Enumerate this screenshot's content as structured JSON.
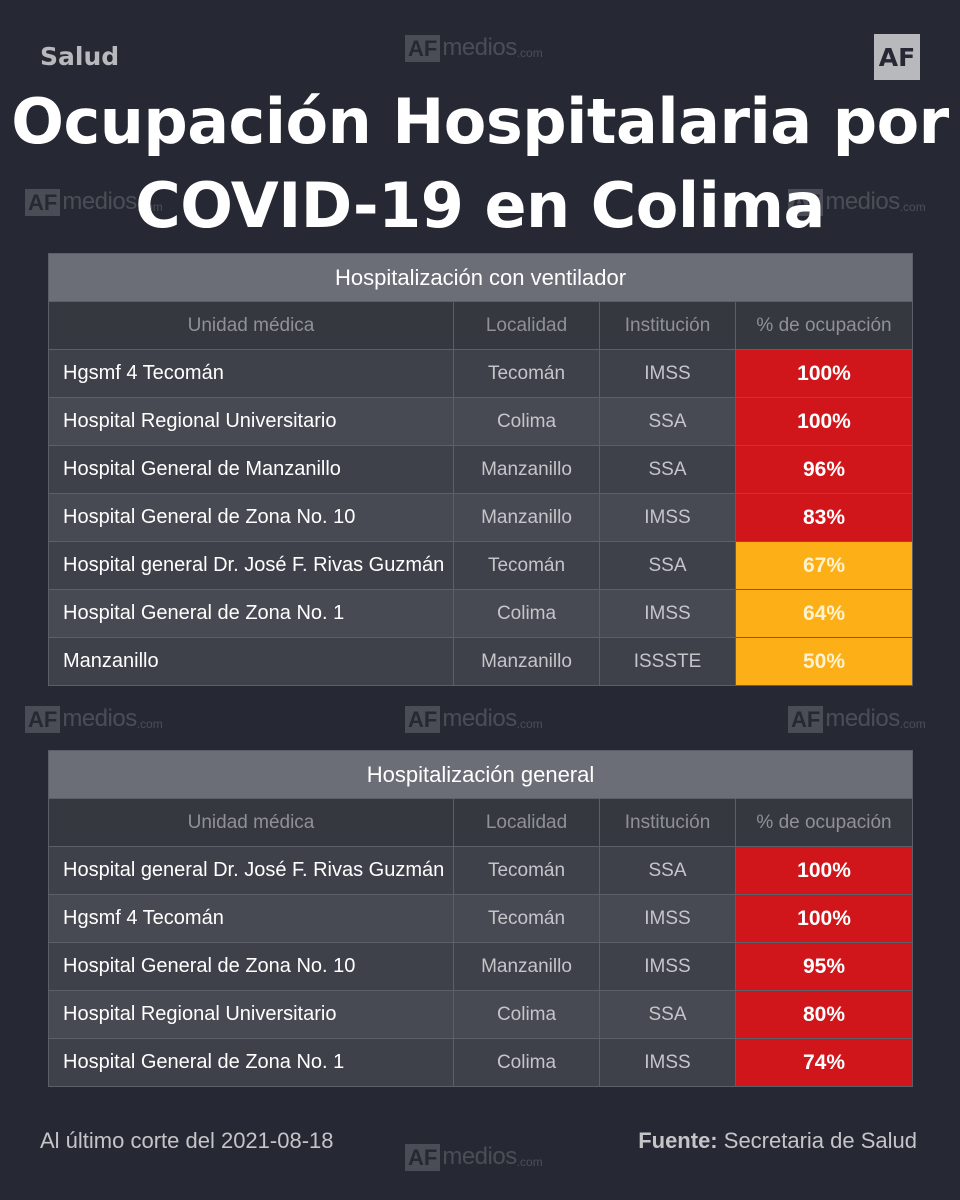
{
  "header": {
    "section": "Salud",
    "logo": "AF",
    "title_line1": "Ocupación Hospitalaria por",
    "title_line2": "COVID-19 en Colima"
  },
  "watermark": {
    "af": "AF",
    "text": "medios",
    "suffix": ".com"
  },
  "columns": {
    "unit": "Unidad médica",
    "locality": "Localidad",
    "institution": "Institución",
    "occupancy": "% de ocupación"
  },
  "table_ventilator": {
    "title": "Hospitalización con ventilador",
    "rows": [
      {
        "unit": "Hgsmf 4 Tecomán",
        "locality": "Tecomán",
        "institution": "IMSS",
        "occupancy": "100%",
        "level": "red"
      },
      {
        "unit": "Hospital Regional Universitario",
        "locality": "Colima",
        "institution": "SSA",
        "occupancy": "100%",
        "level": "red"
      },
      {
        "unit": "Hospital General de Manzanillo",
        "locality": "Manzanillo",
        "institution": "SSA",
        "occupancy": "96%",
        "level": "red"
      },
      {
        "unit": "Hospital General de Zona No. 10",
        "locality": "Manzanillo",
        "institution": "IMSS",
        "occupancy": "83%",
        "level": "red"
      },
      {
        "unit": "Hospital general Dr. José F. Rivas Guzmán",
        "locality": "Tecomán",
        "institution": "SSA",
        "occupancy": "67%",
        "level": "orange"
      },
      {
        "unit": "Hospital General de Zona No. 1",
        "locality": "Colima",
        "institution": "IMSS",
        "occupancy": "64%",
        "level": "orange"
      },
      {
        "unit": "Manzanillo",
        "locality": "Manzanillo",
        "institution": "ISSSTE",
        "occupancy": "50%",
        "level": "orange"
      }
    ]
  },
  "table_general": {
    "title": "Hospitalización general",
    "rows": [
      {
        "unit": "Hospital general Dr. José F. Rivas Guzmán",
        "locality": "Tecomán",
        "institution": "SSA",
        "occupancy": "100%",
        "level": "red"
      },
      {
        "unit": "Hgsmf 4 Tecomán",
        "locality": "Tecomán",
        "institution": "IMSS",
        "occupancy": "100%",
        "level": "red"
      },
      {
        "unit": "Hospital General de Zona No. 10",
        "locality": "Manzanillo",
        "institution": "IMSS",
        "occupancy": "95%",
        "level": "red"
      },
      {
        "unit": "Hospital Regional Universitario",
        "locality": "Colima",
        "institution": "SSA",
        "occupancy": "80%",
        "level": "red"
      },
      {
        "unit": "Hospital General de Zona No. 1",
        "locality": "Colima",
        "institution": "IMSS",
        "occupancy": "74%",
        "level": "red"
      }
    ]
  },
  "footer": {
    "cutoff": "Al último corte del 2021-08-18",
    "source_label": "Fuente:",
    "source_value": "Secretaria de Salud"
  },
  "colors": {
    "background": "#262933",
    "high": "#d0151b",
    "medium": "#fcaf17"
  }
}
